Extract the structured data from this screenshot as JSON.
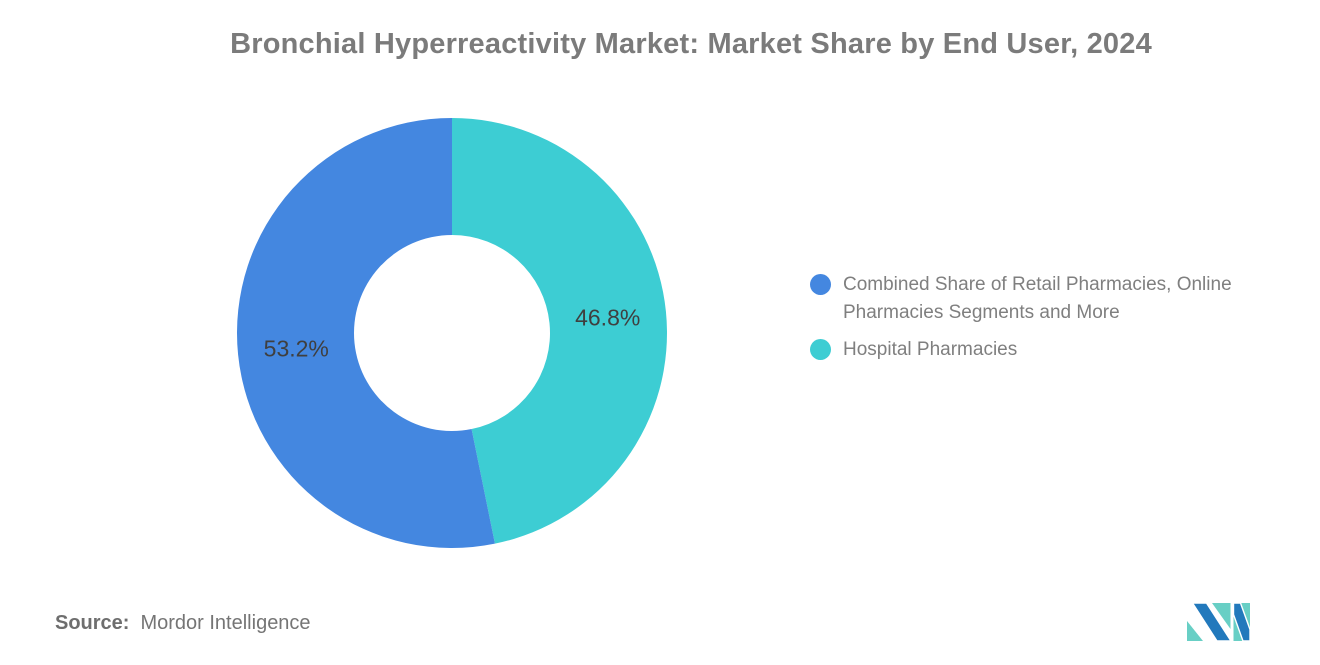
{
  "title": "Bronchial Hyperreactivity Market: Market Share by End User, 2024",
  "chart_data": {
    "type": "pie",
    "donut": true,
    "title": "Bronchial Hyperreactivity Market: Market Share by End User, 2024",
    "start_angle_deg": 0,
    "inner_radius_ratio": 0.456,
    "slices": [
      {
        "label": "Hospital Pharmacies",
        "value": 46.8,
        "data_label": "46.8%",
        "color": "#3DCDD3"
      },
      {
        "label": "Combined Share of Retail Pharmacies, Online Pharmacies Segments and More",
        "value": 53.2,
        "data_label": "53.2%",
        "color": "#4487E0"
      }
    ],
    "legend_position": "right",
    "background": "#ffffff"
  },
  "legend": {
    "items": [
      {
        "label": "Combined Share of Retail Pharmacies, Online Pharmacies Segments and More",
        "color": "#4487E0"
      },
      {
        "label": "Hospital Pharmacies",
        "color": "#3DCDD3"
      }
    ]
  },
  "source": {
    "prefix": "Source:",
    "text": "Mordor Intelligence"
  },
  "logo": {
    "name": "mordor-intelligence-logo",
    "colors": {
      "blue": "#2279BC",
      "teal": "#68CFC5"
    }
  },
  "colors": {
    "slice_blue": "#4487E0",
    "slice_teal": "#3DCDD3",
    "title_text": "#7b7b7b",
    "slice_label_text": "#3f3f3f",
    "legend_text": "#7f7f7f",
    "source_text": "#757575"
  }
}
